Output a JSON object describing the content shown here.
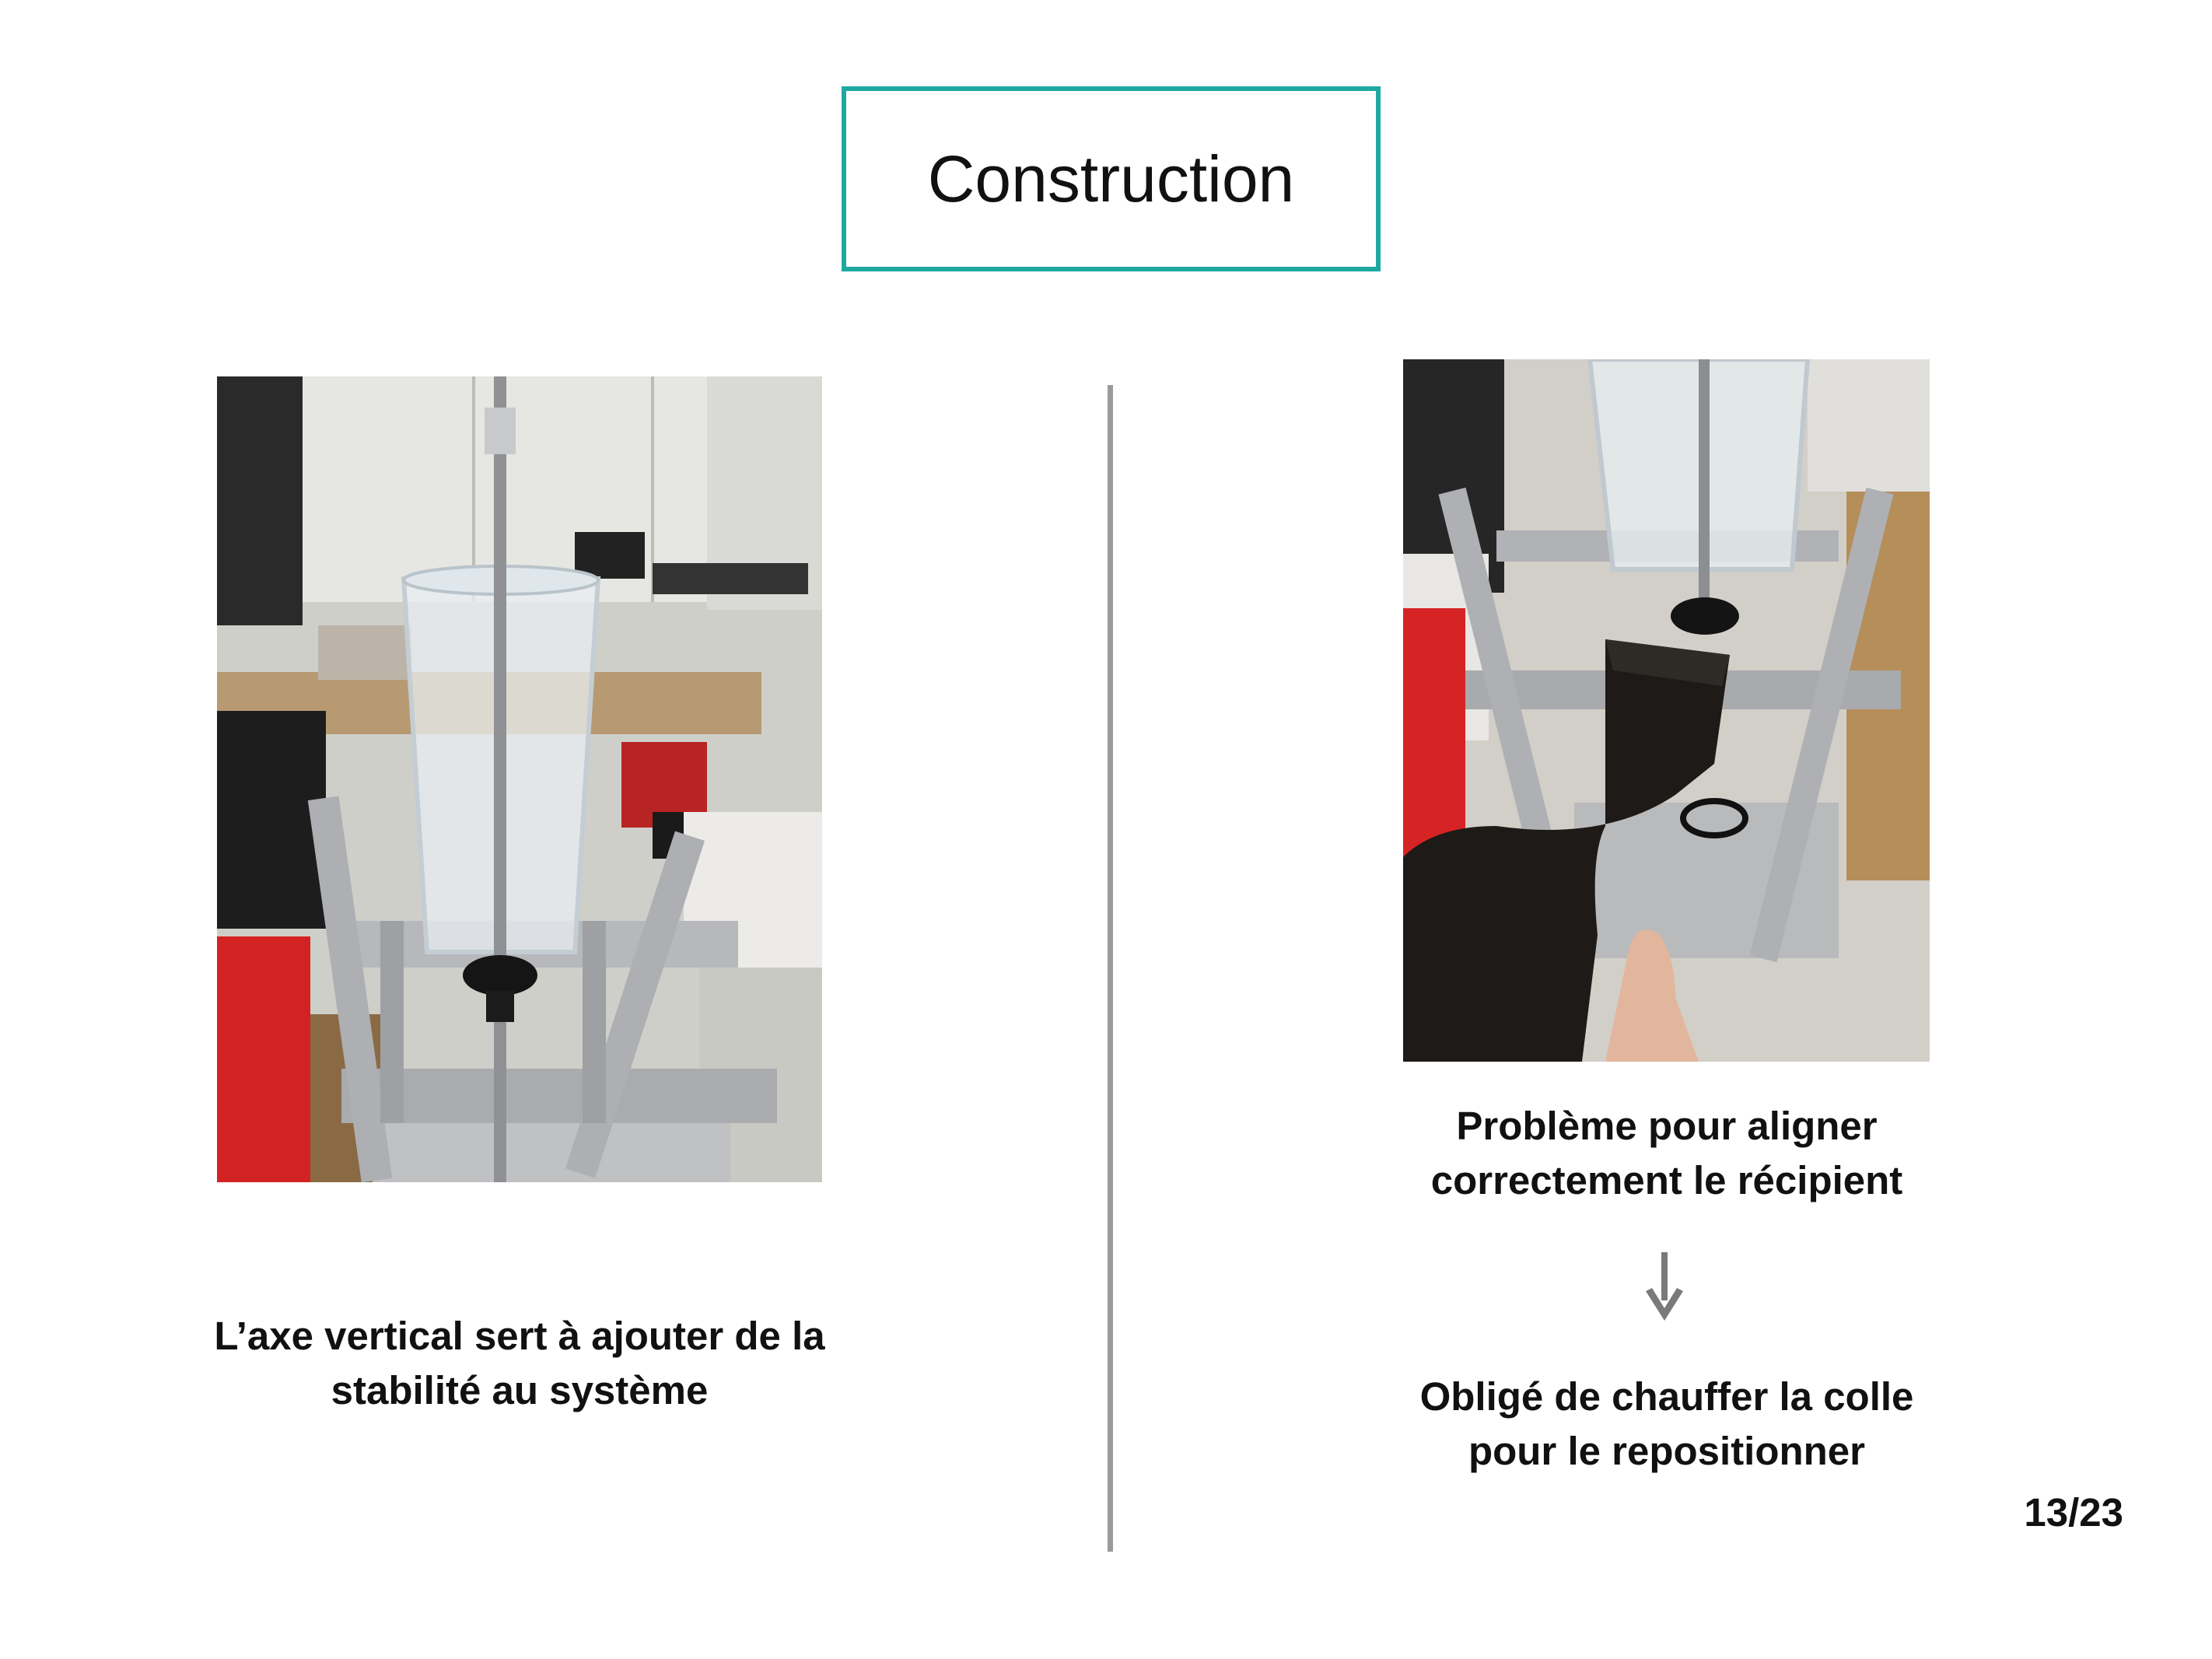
{
  "slide": {
    "title": "Construction",
    "page_number": "13/23",
    "colors": {
      "title_border": "#1fa8a0",
      "divider": "#9a9a9a",
      "text": "#111111",
      "arrow": "#7a7a7a"
    }
  },
  "left_panel": {
    "photo_icon": "photo-axis-icon",
    "caption_lines": [
      "L’axe vertical sert à ajouter de la",
      "stabilité au système"
    ]
  },
  "right_panel": {
    "photo_icon": "photo-heat-gun-icon",
    "problem_lines": [
      "Problème pour aligner",
      "correctement le récipient"
    ],
    "arrow_icon": "arrow-down-icon",
    "solution_lines": [
      "Obligé de chauffer la colle",
      "pour le repositionner"
    ]
  }
}
